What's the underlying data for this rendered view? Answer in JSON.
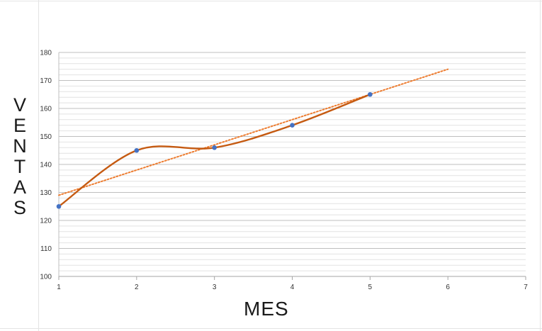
{
  "chart_data": {
    "type": "line",
    "xlabel": "MES",
    "ylabel": "VENTAS",
    "xlim": [
      1,
      7
    ],
    "ylim": [
      100,
      180
    ],
    "x_ticks": [
      1,
      2,
      3,
      4,
      5,
      6,
      7
    ],
    "y_ticks": [
      100,
      110,
      120,
      130,
      140,
      150,
      160,
      170,
      180
    ],
    "y_major_grid_step": 10,
    "y_minor_grid_step": 2,
    "grid": true,
    "legend": "none",
    "series": [
      {
        "x": [
          1,
          2,
          3,
          4,
          5
        ],
        "values": [
          125,
          145,
          146,
          154,
          165
        ],
        "line_style": "smooth",
        "line_color": "#c55a11",
        "marker_color": "#4472c4"
      }
    ],
    "trendline": {
      "type": "linear",
      "x": [
        1,
        6
      ],
      "values": [
        129,
        174
      ],
      "line_style": "dotted",
      "color": "#ed7d31"
    }
  }
}
